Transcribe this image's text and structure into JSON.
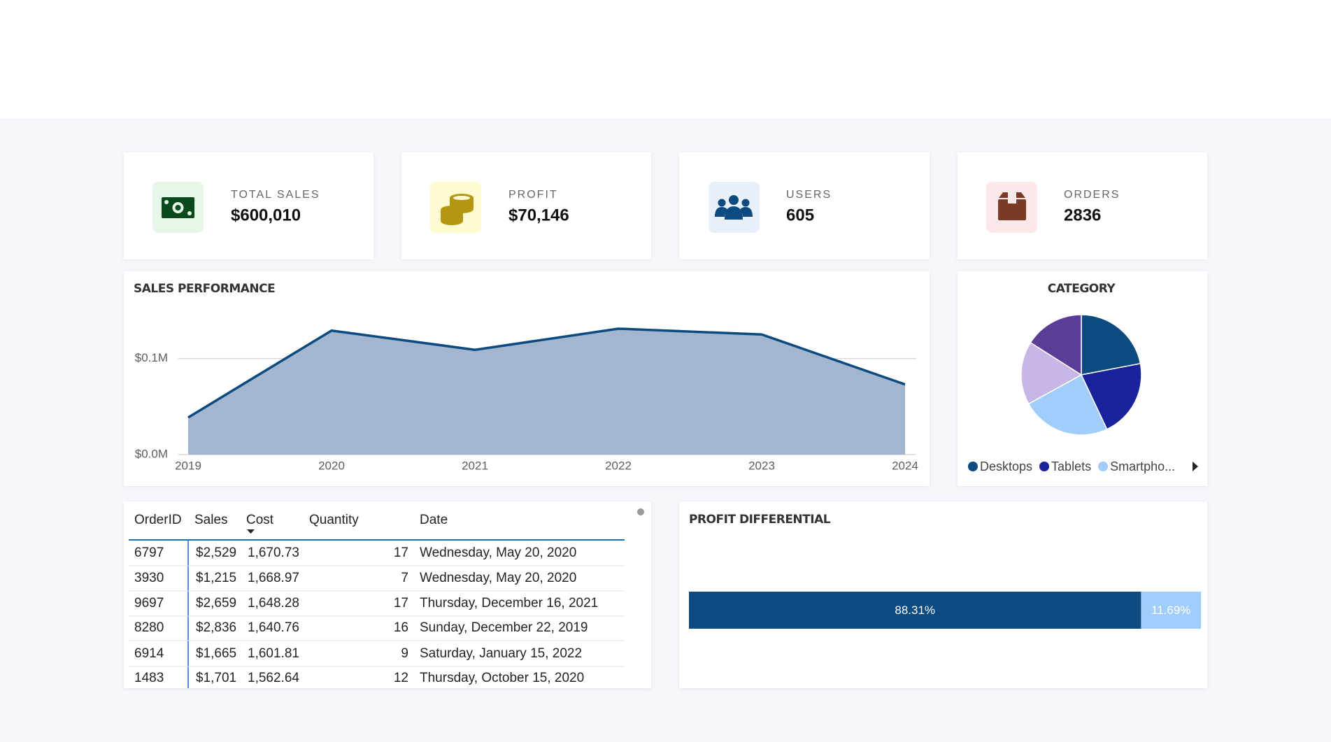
{
  "kpis": [
    {
      "label": "TOTAL SALES",
      "value": "$600,010"
    },
    {
      "label": "PROFIT",
      "value": "$70,146"
    },
    {
      "label": "USERS",
      "value": "605"
    },
    {
      "label": "ORDERS",
      "value": "2836"
    }
  ],
  "chart_data": [
    {
      "type": "area",
      "title": "SALES PERFORMANCE",
      "categories": [
        "2019",
        "2020",
        "2021",
        "2022",
        "2023",
        "2024"
      ],
      "values": [
        38600,
        129000,
        109000,
        131000,
        125000,
        73000
      ],
      "color": "#0d4a80",
      "fill": "#9db3cc",
      "ylim": [
        0,
        155000
      ],
      "yticks": [
        {
          "value": 0,
          "label": "$0.0M"
        },
        {
          "value": 100000,
          "label": "$0.1M"
        }
      ],
      "grid": true
    },
    {
      "type": "pie",
      "title": "CATEGORY",
      "categories": [
        "Desktops",
        "Tablets",
        "Smartpho...",
        null,
        null
      ],
      "values": [
        22,
        21,
        24,
        17,
        16
      ],
      "colors": [
        "#0d4a80",
        "#17229b",
        "#a0cdf9",
        "#c7b6e6",
        "#5b3c96"
      ],
      "legend": "bottom"
    },
    {
      "type": "bar",
      "title": "PROFIT DIFFERENTIAL",
      "orientation": "horizontal",
      "stacked": true,
      "xlim": [
        0,
        100
      ],
      "series": [
        {
          "color": "#0d4a80",
          "values": [
            88.31
          ],
          "value_labels": [
            "88.31%"
          ]
        },
        {
          "color": "#a0cdf9",
          "values": [
            11.69
          ],
          "value_labels": [
            "11.69%"
          ]
        }
      ]
    }
  ],
  "table": {
    "columns": [
      "OrderID",
      "Sales",
      "Cost",
      "Quantity",
      "Date"
    ],
    "rows": [
      [
        "6797",
        "$2,529",
        "1,670.73",
        "17",
        "Wednesday, May 20, 2020"
      ],
      [
        "3930",
        "$1,215",
        "1,668.97",
        "7",
        "Wednesday, May 20, 2020"
      ],
      [
        "9697",
        "$2,659",
        "1,648.28",
        "17",
        "Thursday, December 16, 2021"
      ],
      [
        "8280",
        "$2,836",
        "1,640.76",
        "16",
        "Sunday, December 22, 2019"
      ],
      [
        "6914",
        "$1,665",
        "1,601.81",
        "9",
        "Saturday, January 15, 2022"
      ],
      [
        "1483",
        "$1,701",
        "1,562.64",
        "12",
        "Thursday, October 15, 2020"
      ]
    ]
  }
}
